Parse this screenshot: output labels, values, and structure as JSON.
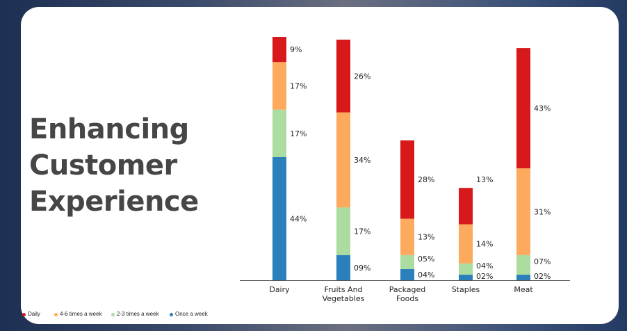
{
  "title_lines": [
    "Enhancing",
    "Customer",
    "Experience"
  ],
  "chart_data": {
    "type": "bar",
    "stacked": true,
    "categories": [
      [
        "Dairy"
      ],
      [
        "Fruits And",
        "Vegetables"
      ],
      [
        "Packaged",
        "Foods"
      ],
      [
        "Staples"
      ],
      [
        "Meat"
      ]
    ],
    "series": [
      {
        "name": "Once a week",
        "color": "#2b80bb",
        "values": [
          44,
          9,
          4,
          2,
          2
        ],
        "labels": [
          "44%",
          "09%",
          "04%",
          "02%",
          "02%"
        ]
      },
      {
        "name": "2-3 times a week",
        "color": "#acdca0",
        "values": [
          17,
          17,
          5,
          4,
          7
        ],
        "labels": [
          "17%",
          "17%",
          "05%",
          "04%",
          "07%"
        ]
      },
      {
        "name": "4-6 times a week",
        "color": "#fdaa5e",
        "values": [
          17,
          34,
          13,
          14,
          31
        ],
        "labels": [
          "17%",
          "34%",
          "13%",
          "14%",
          "31%"
        ]
      },
      {
        "name": "Daily",
        "color": "#d7191c",
        "values": [
          9,
          26,
          28,
          13,
          43
        ],
        "labels": [
          "9%",
          "26%",
          "28%",
          "13%",
          "43%"
        ]
      }
    ],
    "legend_order": [
      "Daily",
      "4-6 times a week",
      "2-3 times a week",
      "Once a week"
    ],
    "legend_position": "bottom-left",
    "ylim": [
      0,
      90
    ],
    "grid": false
  }
}
